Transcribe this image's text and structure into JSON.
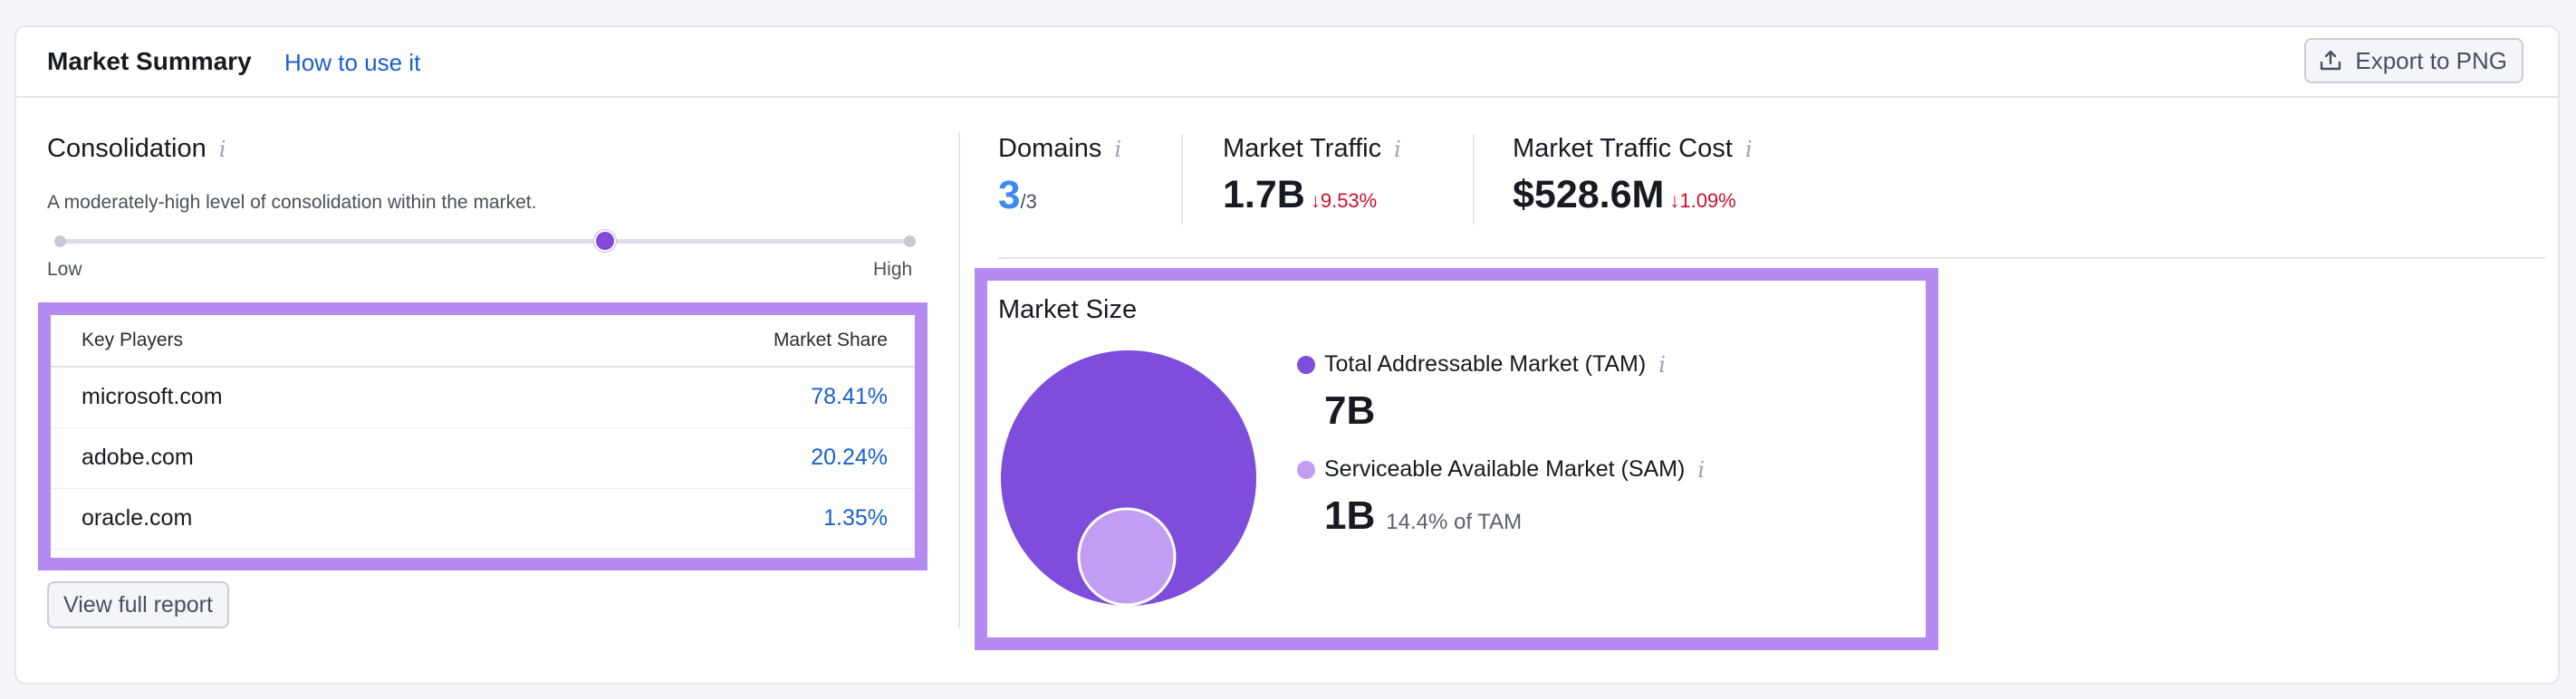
{
  "header": {
    "title": "Market Summary",
    "how_to_link": "How to use it",
    "export_label": "Export to PNG"
  },
  "consolidation": {
    "title": "Consolidation",
    "info": "i",
    "description": "A moderately-high level of consolidation within the market.",
    "level_fraction": 0.64,
    "low_label": "Low",
    "high_label": "High"
  },
  "key_players": {
    "col_players": "Key Players",
    "col_share": "Market Share",
    "rows": [
      {
        "domain": "microsoft.com",
        "share": "78.41%"
      },
      {
        "domain": "adobe.com",
        "share": "20.24%"
      },
      {
        "domain": "oracle.com",
        "share": "1.35%"
      }
    ],
    "view_full_report": "View full report"
  },
  "metrics": {
    "domains": {
      "label": "Domains",
      "info": "i",
      "value": "3",
      "total": "/3"
    },
    "traffic": {
      "label": "Market Traffic",
      "info": "i",
      "value": "1.7B",
      "delta": "↓9.53%"
    },
    "traffic_cost": {
      "label": "Market Traffic Cost",
      "info": "i",
      "value": "$528.6M",
      "delta": "↓1.09%"
    }
  },
  "market_size": {
    "title": "Market Size",
    "tam": {
      "label": "Total Addressable Market (TAM)",
      "info": "i",
      "value": "7B",
      "color": "#7e4ddb"
    },
    "sam": {
      "label": "Serviceable Available Market (SAM)",
      "info": "i",
      "value": "1B",
      "note": "14.4% of TAM",
      "color": "#c39df4"
    }
  },
  "colors": {
    "accent_purple": "#8449d9",
    "highlight_border": "#b58bf2",
    "link_blue": "#1a5ecf",
    "negative_red": "#c8102e",
    "domains_blue": "#3d8bf0"
  }
}
